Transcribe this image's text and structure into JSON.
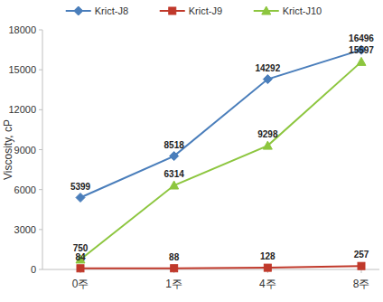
{
  "chart_data": {
    "type": "line",
    "y_label": "Viscosity, cP",
    "categories": [
      "0주",
      "1주",
      "4주",
      "8주"
    ],
    "series": [
      {
        "name": "Krict-J8",
        "color": "#4a7ebb",
        "marker": "diamond",
        "values": [
          5399,
          8518,
          14292,
          16496
        ]
      },
      {
        "name": "Krict-J9",
        "color": "#c0392b",
        "marker": "square",
        "values": [
          84,
          88,
          128,
          257
        ]
      },
      {
        "name": "Krict-J10",
        "color": "#8dc63f",
        "marker": "triangle",
        "values": [
          750,
          6314,
          9298,
          15597
        ]
      }
    ],
    "ylim": [
      0,
      18000
    ],
    "yticks": [
      0,
      3000,
      6000,
      9000,
      12000,
      15000,
      18000
    ],
    "grid": false,
    "legend": "top",
    "data_labels": true
  }
}
